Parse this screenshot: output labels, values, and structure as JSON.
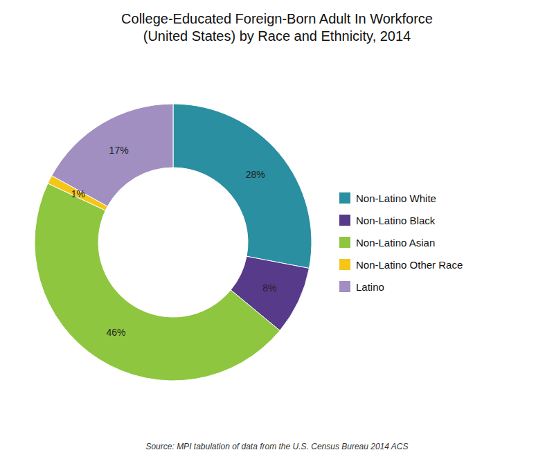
{
  "chart_data": {
    "type": "donut",
    "title": "College-Educated Foreign-Born Adult In Workforce\n(United States) by Race and Ethnicity, 2014",
    "categories": [
      "Non-Latino White",
      "Non-Latino Black",
      "Non-Latino Asian",
      "Non-Latino Other Race",
      "Latino"
    ],
    "values": [
      28,
      8,
      46,
      1,
      17
    ],
    "value_labels": [
      "28%",
      "8%",
      "46%",
      "1%",
      "17%"
    ],
    "colors": [
      "#2a8fa0",
      "#573a8a",
      "#8ec63f",
      "#f5c518",
      "#a08fc0"
    ],
    "data_labels": true,
    "legend": "right",
    "annotations": [
      "Source: MPI tabulation of data from the U.S. Census Bureau 2014 ACS"
    ]
  }
}
